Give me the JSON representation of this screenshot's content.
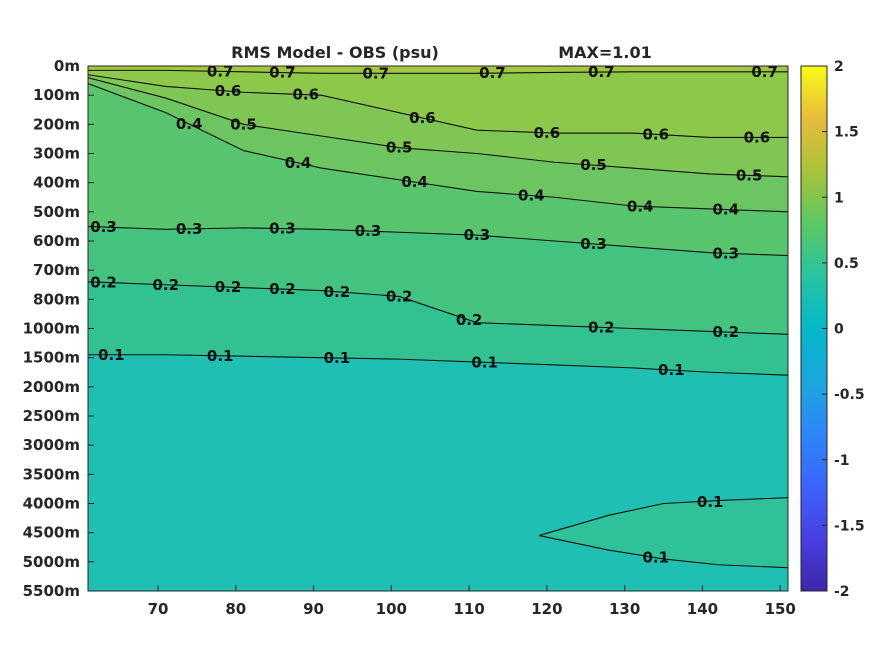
{
  "chart_data": {
    "type": "heatmap",
    "subtype": "filled-contour",
    "title": "RMS Model - OBS (psu)",
    "annotation": "MAX=1.01",
    "xlabel": "",
    "ylabel": "",
    "xlim": [
      61,
      151
    ],
    "x_ticks": [
      70,
      80,
      90,
      100,
      110,
      120,
      130,
      140,
      150
    ],
    "y_ticks": [
      "0m",
      "100m",
      "200m",
      "300m",
      "400m",
      "500m",
      "600m",
      "700m",
      "800m",
      "1000m",
      "1500m",
      "2000m",
      "2500m",
      "3000m",
      "3500m",
      "4000m",
      "4500m",
      "5000m",
      "5500m"
    ],
    "y_axis_direction": "reversed",
    "colorbar": {
      "colormap": "parula",
      "range": [
        -2,
        2
      ],
      "ticks": [
        "2",
        "1.5",
        "1",
        "0.5",
        "0",
        "-0.5",
        "-1",
        "-1.5",
        "-2"
      ],
      "placement": "right"
    },
    "contour_levels": [
      0.1,
      0.2,
      0.3,
      0.4,
      0.5,
      0.6,
      0.7
    ],
    "contours": [
      {
        "level": 0.7,
        "depth_index": [
          0.15,
          0.15,
          0.2,
          0.25,
          0.25,
          0.25,
          0.22,
          0.2,
          0.2,
          0.2
        ],
        "labels": [
          {
            "text": "0.7",
            "x": 78
          },
          {
            "text": "0.7",
            "x": 86
          },
          {
            "text": "0.7",
            "x": 98
          },
          {
            "text": "0.7",
            "x": 113
          },
          {
            "text": "0.7",
            "x": 127
          },
          {
            "text": "0.7",
            "x": 148
          }
        ]
      },
      {
        "level": 0.6,
        "depth_index": [
          0.3,
          0.7,
          0.9,
          1.0,
          1.6,
          2.2,
          2.3,
          2.3,
          2.45,
          2.45
        ],
        "labels": [
          {
            "text": "0.6",
            "x": 79
          },
          {
            "text": "0.6",
            "x": 89
          },
          {
            "text": "0.6",
            "x": 104
          },
          {
            "text": "0.6",
            "x": 120
          },
          {
            "text": "0.6",
            "x": 134
          },
          {
            "text": "0.6",
            "x": 147
          }
        ]
      },
      {
        "level": 0.5,
        "depth_index": [
          0.4,
          1.1,
          2.0,
          2.4,
          2.8,
          3.0,
          3.3,
          3.5,
          3.7,
          3.8
        ],
        "labels": [
          {
            "text": "0.5",
            "x": 81
          },
          {
            "text": "0.5",
            "x": 101
          },
          {
            "text": "0.5",
            "x": 126
          },
          {
            "text": "0.5",
            "x": 146
          }
        ]
      },
      {
        "level": 0.4,
        "depth_index": [
          0.6,
          1.6,
          2.9,
          3.5,
          3.9,
          4.3,
          4.5,
          4.8,
          4.9,
          5.0
        ],
        "labels": [
          {
            "text": "0.4",
            "x": 74
          },
          {
            "text": "0.4",
            "x": 88
          },
          {
            "text": "0.4",
            "x": 103
          },
          {
            "text": "0.4",
            "x": 118
          },
          {
            "text": "0.4",
            "x": 132
          },
          {
            "text": "0.4",
            "x": 143
          }
        ]
      },
      {
        "level": 0.3,
        "depth_index": [
          5.5,
          5.6,
          5.55,
          5.6,
          5.7,
          5.8,
          6.0,
          6.2,
          6.4,
          6.5
        ],
        "labels": [
          {
            "text": "0.3",
            "x": 63
          },
          {
            "text": "0.3",
            "x": 74
          },
          {
            "text": "0.3",
            "x": 86
          },
          {
            "text": "0.3",
            "x": 97
          },
          {
            "text": "0.3",
            "x": 111
          },
          {
            "text": "0.3",
            "x": 126
          },
          {
            "text": "0.3",
            "x": 143
          }
        ]
      },
      {
        "level": 0.2,
        "depth_index": [
          7.4,
          7.5,
          7.6,
          7.7,
          7.9,
          8.8,
          8.9,
          9.0,
          9.1,
          9.2
        ],
        "labels": [
          {
            "text": "0.2",
            "x": 63
          },
          {
            "text": "0.2",
            "x": 71
          },
          {
            "text": "0.2",
            "x": 79
          },
          {
            "text": "0.2",
            "x": 86
          },
          {
            "text": "0.2",
            "x": 93
          },
          {
            "text": "0.2",
            "x": 101
          },
          {
            "text": "0.2",
            "x": 110
          },
          {
            "text": "0.2",
            "x": 127
          },
          {
            "text": "0.2",
            "x": 143
          }
        ]
      },
      {
        "level": 0.1,
        "depth_index": [
          9.9,
          9.9,
          9.95,
          10.0,
          10.05,
          10.15,
          10.25,
          10.35,
          10.5,
          10.6
        ],
        "labels": [
          {
            "text": "0.1",
            "x": 64
          },
          {
            "text": "0.1",
            "x": 78
          },
          {
            "text": "0.1",
            "x": 93
          },
          {
            "text": "0.1",
            "x": 112
          },
          {
            "text": "0.1",
            "x": 136
          }
        ]
      },
      {
        "level": 0.1,
        "closed_region": "deep-east",
        "points": [
          [
            119,
            16.1
          ],
          [
            128,
            15.4
          ],
          [
            135,
            15.0
          ],
          [
            142,
            14.9
          ],
          [
            151,
            14.8
          ]
        ],
        "points_lower": [
          [
            119,
            16.1
          ],
          [
            128,
            16.6
          ],
          [
            135,
            16.9
          ],
          [
            142,
            17.1
          ],
          [
            151,
            17.2
          ]
        ],
        "labels": [
          {
            "text": "0.1",
            "x": 141,
            "y": 14.95
          },
          {
            "text": "0.1",
            "x": 134,
            "y": 16.85
          }
        ]
      }
    ]
  }
}
